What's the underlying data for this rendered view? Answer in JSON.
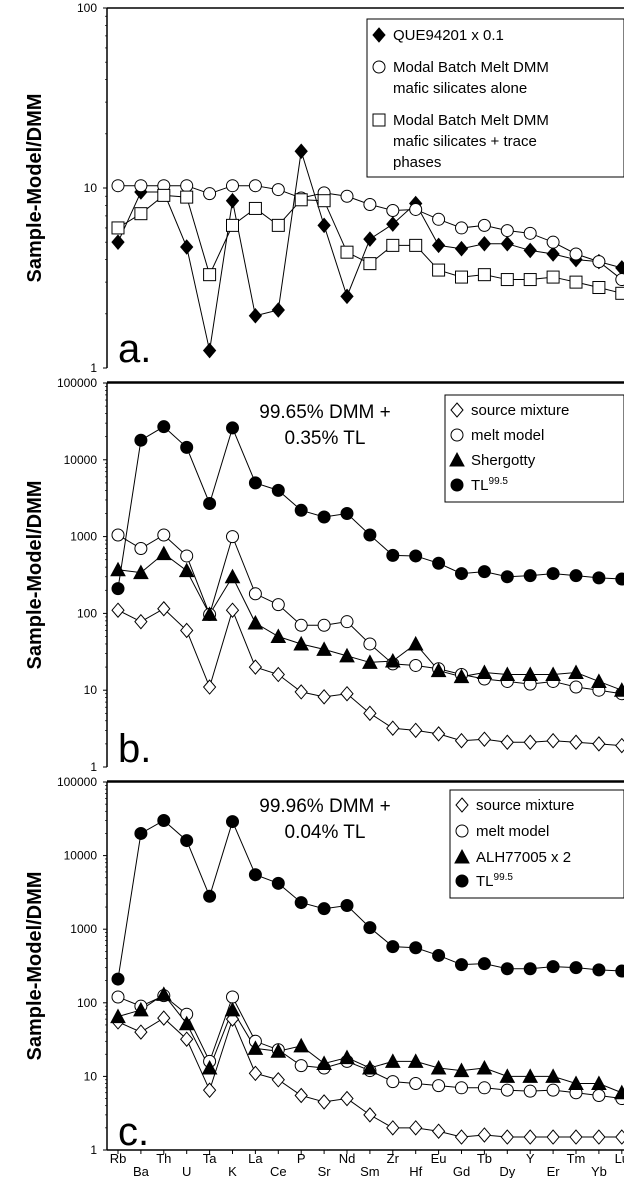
{
  "chart_data": [
    {
      "type": "line",
      "panel_label": "a.",
      "ylabel": "Sample-Model/DMM",
      "yscale": "log",
      "ylim": [
        1,
        100
      ],
      "ytick_labels": [
        "1",
        "10",
        "100"
      ],
      "annotation": [],
      "legend_position": "top-right",
      "legend_box": true,
      "x": [
        "Rb",
        "Ba",
        "Th",
        "U",
        "Ta",
        "K",
        "La",
        "Ce",
        "P",
        "Sr",
        "Nd",
        "Sm",
        "Zr",
        "Hf",
        "Eu",
        "Gd",
        "Tb",
        "Dy",
        "Y",
        "Er",
        "Tm",
        "Yb",
        "Lu"
      ],
      "series": [
        {
          "name": "QUE94201 x 0.1",
          "marker": "diamond-filled",
          "values": [
            5,
            9.5,
            9.5,
            4.7,
            1.25,
            8.5,
            1.95,
            2.1,
            16,
            6.2,
            2.5,
            5.2,
            6.3,
            8.2,
            4.8,
            4.6,
            4.9,
            4.9,
            4.5,
            4.3,
            4.0,
            3.9,
            3.6
          ]
        },
        {
          "name": "Modal Batch Melt DMM mafic silicates alone",
          "marker": "circle-open",
          "values": [
            10.3,
            10.3,
            10.3,
            10.3,
            9.3,
            10.3,
            10.3,
            9.8,
            8.8,
            9.4,
            9.0,
            8.1,
            7.5,
            7.6,
            6.7,
            6.0,
            6.2,
            5.8,
            5.6,
            5.0,
            4.3,
            3.9,
            3.1
          ]
        },
        {
          "name": "Modal Batch Melt DMM mafic silicates + trace phases",
          "marker": "square-open",
          "values": [
            6,
            7.2,
            9.1,
            8.9,
            3.3,
            6.2,
            7.7,
            6.2,
            8.6,
            8.5,
            4.4,
            3.8,
            4.8,
            4.8,
            3.5,
            3.2,
            3.3,
            3.1,
            3.1,
            3.2,
            3.0,
            2.8,
            2.6
          ]
        }
      ]
    },
    {
      "type": "line",
      "panel_label": "b.",
      "ylabel": "Sample-Model/DMM",
      "yscale": "log",
      "ylim": [
        1,
        100000
      ],
      "ytick_labels": [
        "1",
        "10",
        "100",
        "1000",
        "10000",
        "100000"
      ],
      "annotation": [
        "99.65% DMM +",
        "0.35% TL"
      ],
      "legend_position": "top-right",
      "legend_box": true,
      "x": [
        "Rb",
        "Ba",
        "Th",
        "U",
        "Ta",
        "K",
        "La",
        "Ce",
        "P",
        "Sr",
        "Nd",
        "Sm",
        "Zr",
        "Hf",
        "Eu",
        "Gd",
        "Tb",
        "Dy",
        "Y",
        "Er",
        "Tm",
        "Yb",
        "Lu"
      ],
      "series": [
        {
          "name": "source mixture",
          "marker": "diamond-open",
          "values": [
            110,
            78,
            115,
            60,
            11,
            110,
            20,
            16,
            9.5,
            8.2,
            9,
            5,
            3.2,
            3,
            2.7,
            2.2,
            2.3,
            2.1,
            2.1,
            2.2,
            2.1,
            2.0,
            1.9
          ]
        },
        {
          "name": "melt model",
          "marker": "circle-open",
          "values": [
            1050,
            700,
            1050,
            560,
            97,
            1000,
            180,
            130,
            70,
            70,
            78,
            40,
            22,
            21,
            19,
            16,
            14,
            13,
            12,
            13,
            11,
            10,
            9
          ]
        },
        {
          "name": "Shergotty",
          "marker": "triangle-filled",
          "values": [
            370,
            340,
            600,
            360,
            97,
            300,
            75,
            50,
            40,
            34,
            28,
            23,
            24,
            40,
            18,
            15,
            17,
            16,
            16,
            16,
            17,
            13,
            10
          ]
        },
        {
          "name": "TL",
          "name_superscript": "99.5",
          "marker": "circle-filled",
          "values": [
            210,
            18000,
            27000,
            14500,
            2700,
            26000,
            5000,
            4000,
            2200,
            1800,
            2000,
            1050,
            570,
            560,
            450,
            330,
            350,
            300,
            310,
            330,
            310,
            290,
            280
          ]
        }
      ]
    },
    {
      "type": "line",
      "panel_label": "c.",
      "ylabel": "Sample-Model/DMM",
      "yscale": "log",
      "ylim": [
        1,
        100000
      ],
      "ytick_labels": [
        "1",
        "10",
        "100",
        "1000",
        "10000",
        "100000"
      ],
      "annotation": [
        "99.96% DMM +",
        "0.04% TL"
      ],
      "legend_position": "top-right",
      "legend_box": true,
      "x": [
        "Rb",
        "Ba",
        "Th",
        "U",
        "Ta",
        "K",
        "La",
        "Ce",
        "P",
        "Sr",
        "Nd",
        "Sm",
        "Zr",
        "Hf",
        "Eu",
        "Gd",
        "Tb",
        "Dy",
        "Y",
        "Er",
        "Tm",
        "Yb",
        "Lu"
      ],
      "series": [
        {
          "name": "source mixture",
          "marker": "diamond-open",
          "values": [
            55,
            40,
            62,
            32,
            6.5,
            60,
            11,
            9,
            5.5,
            4.5,
            5,
            3,
            2,
            2,
            1.8,
            1.5,
            1.6,
            1.5,
            1.5,
            1.5,
            1.5,
            1.5,
            1.5
          ]
        },
        {
          "name": "melt model",
          "marker": "circle-open",
          "values": [
            120,
            90,
            125,
            70,
            16,
            120,
            30,
            23,
            14,
            13,
            16,
            12,
            8.5,
            8,
            7.5,
            7,
            7,
            6.5,
            6.3,
            6.5,
            6,
            5.5,
            5
          ]
        },
        {
          "name": "ALH77005 x 2",
          "marker": "triangle-filled",
          "values": [
            65,
            80,
            130,
            52,
            13,
            80,
            24,
            22,
            26,
            15,
            18,
            13,
            16,
            16,
            13,
            12,
            13,
            10,
            10,
            10,
            8,
            8,
            6
          ]
        },
        {
          "name": "TL",
          "name_superscript": "99.5",
          "marker": "circle-filled",
          "values": [
            210,
            20000,
            30000,
            16000,
            2800,
            29000,
            5500,
            4200,
            2300,
            1900,
            2100,
            1050,
            580,
            560,
            440,
            330,
            340,
            290,
            290,
            310,
            300,
            280,
            270
          ]
        }
      ]
    }
  ],
  "x_tick_labels_top_row": [
    "Rb",
    "Th",
    "Ta",
    "La",
    "P",
    "Nd",
    "Zr",
    "Eu",
    "Tb",
    "Y",
    "Tm",
    "Lu"
  ],
  "x_tick_labels_bottom_row": [
    "Ba",
    "U",
    "K",
    "Ce",
    "Sr",
    "Sm",
    "Hf",
    "Gd",
    "Dy",
    "Er",
    "Yb"
  ]
}
